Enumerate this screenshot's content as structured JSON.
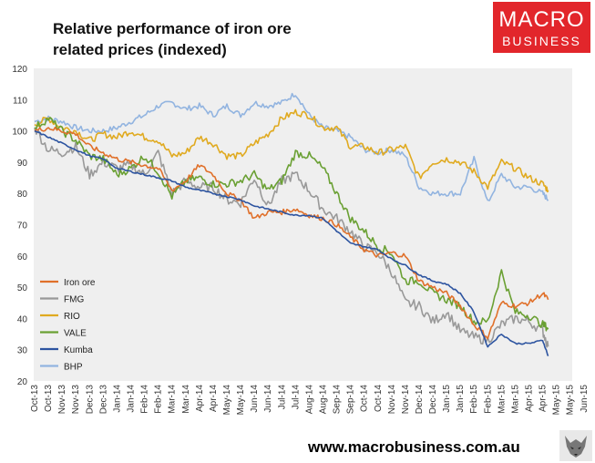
{
  "title_line1": "Relative performance of iron ore",
  "title_line2": "related prices (indexed)",
  "logo": {
    "line1": "MACRO",
    "line2": "BUSINESS"
  },
  "footer": "www.macrobusiness.com.au",
  "chart_data": {
    "type": "line",
    "title": "Relative performance of iron ore related prices (indexed)",
    "xlabel": "",
    "ylabel": "",
    "ylim": [
      20,
      120
    ],
    "yticks": [
      20,
      30,
      40,
      50,
      60,
      70,
      80,
      90,
      100,
      110,
      120
    ],
    "categories": [
      "Oct-13",
      "Oct-13",
      "Nov-13",
      "Nov-13",
      "Dec-13",
      "Dec-13",
      "Jan-14",
      "Jan-14",
      "Feb-14",
      "Feb-14",
      "Mar-14",
      "Mar-14",
      "Apr-14",
      "Apr-14",
      "May-14",
      "May-14",
      "Jun-14",
      "Jun-14",
      "Jul-14",
      "Jul-14",
      "Aug-14",
      "Aug-14",
      "Sep-14",
      "Sep-14",
      "Oct-14",
      "Oct-14",
      "Nov-14",
      "Nov-14",
      "Dec-14",
      "Dec-14",
      "Jan-15",
      "Jan-15",
      "Feb-15",
      "Feb-15",
      "Mar-15",
      "Mar-15",
      "Apr-15",
      "Apr-15",
      "May-15",
      "May-15",
      "Jun-15"
    ],
    "grid": false,
    "legend_position": "bottom-left",
    "series": [
      {
        "name": "Iron ore",
        "color": "#e0702a",
        "points": [
          [
            0,
            100
          ],
          [
            1,
            101
          ],
          [
            2,
            100
          ],
          [
            3,
            99
          ],
          [
            4,
            95
          ],
          [
            5,
            93
          ],
          [
            6,
            91
          ],
          [
            7,
            90
          ],
          [
            8,
            89
          ],
          [
            9,
            88
          ],
          [
            10,
            81
          ],
          [
            11,
            84
          ],
          [
            12,
            89
          ],
          [
            13,
            86
          ],
          [
            14,
            80
          ],
          [
            15,
            78
          ],
          [
            16,
            72
          ],
          [
            17,
            74
          ],
          [
            18,
            74
          ],
          [
            19,
            75
          ],
          [
            20,
            73
          ],
          [
            21,
            72
          ],
          [
            22,
            70
          ],
          [
            23,
            66
          ],
          [
            24,
            62
          ],
          [
            25,
            60
          ],
          [
            26,
            61
          ],
          [
            27,
            60
          ],
          [
            28,
            52
          ],
          [
            29,
            50
          ],
          [
            30,
            48
          ],
          [
            31,
            44
          ],
          [
            32,
            38
          ],
          [
            33,
            34
          ],
          [
            34,
            45
          ],
          [
            35,
            44
          ],
          [
            36,
            45
          ],
          [
            37,
            48
          ],
          [
            37.4,
            46
          ]
        ]
      },
      {
        "name": "FMG",
        "color": "#999999",
        "points": [
          [
            0,
            101
          ],
          [
            1,
            94
          ],
          [
            2,
            93
          ],
          [
            3,
            95
          ],
          [
            4,
            86
          ],
          [
            5,
            90
          ],
          [
            6,
            88
          ],
          [
            7,
            89
          ],
          [
            8,
            86
          ],
          [
            9,
            93
          ],
          [
            10,
            80
          ],
          [
            11,
            84
          ],
          [
            12,
            82
          ],
          [
            13,
            82
          ],
          [
            14,
            78
          ],
          [
            15,
            77
          ],
          [
            16,
            85
          ],
          [
            17,
            76
          ],
          [
            18,
            84
          ],
          [
            19,
            86
          ],
          [
            20,
            81
          ],
          [
            21,
            75
          ],
          [
            22,
            72
          ],
          [
            23,
            68
          ],
          [
            24,
            63
          ],
          [
            25,
            61
          ],
          [
            26,
            55
          ],
          [
            27,
            45
          ],
          [
            28,
            44
          ],
          [
            29,
            39
          ],
          [
            30,
            42
          ],
          [
            31,
            36
          ],
          [
            32,
            34
          ],
          [
            33,
            33
          ],
          [
            34,
            38
          ],
          [
            35,
            40
          ],
          [
            36,
            39
          ],
          [
            37,
            36
          ],
          [
            37.4,
            31
          ]
        ]
      },
      {
        "name": "RIO",
        "color": "#e0aa20",
        "points": [
          [
            0,
            102
          ],
          [
            1,
            104
          ],
          [
            2,
            101
          ],
          [
            3,
            100
          ],
          [
            4,
            97
          ],
          [
            5,
            99
          ],
          [
            6,
            98
          ],
          [
            7,
            100
          ],
          [
            8,
            98
          ],
          [
            9,
            97
          ],
          [
            10,
            92
          ],
          [
            11,
            93
          ],
          [
            12,
            98
          ],
          [
            13,
            96
          ],
          [
            14,
            92
          ],
          [
            15,
            92
          ],
          [
            16,
            96
          ],
          [
            17,
            99
          ],
          [
            18,
            104
          ],
          [
            19,
            106
          ],
          [
            20,
            105
          ],
          [
            21,
            101
          ],
          [
            22,
            101
          ],
          [
            23,
            95
          ],
          [
            24,
            95
          ],
          [
            25,
            93
          ],
          [
            26,
            94
          ],
          [
            27,
            95
          ],
          [
            28,
            85
          ],
          [
            29,
            90
          ],
          [
            30,
            91
          ],
          [
            31,
            90
          ],
          [
            32,
            87
          ],
          [
            33,
            82
          ],
          [
            34,
            90
          ],
          [
            35,
            88
          ],
          [
            36,
            85
          ],
          [
            37,
            83
          ],
          [
            37.4,
            81
          ]
        ]
      },
      {
        "name": "VALE",
        "color": "#6aa033",
        "points": [
          [
            0,
            101
          ],
          [
            1,
            104
          ],
          [
            2,
            100
          ],
          [
            3,
            97
          ],
          [
            4,
            92
          ],
          [
            5,
            91
          ],
          [
            6,
            86
          ],
          [
            7,
            88
          ],
          [
            8,
            92
          ],
          [
            9,
            87
          ],
          [
            10,
            79
          ],
          [
            11,
            84
          ],
          [
            12,
            85
          ],
          [
            13,
            83
          ],
          [
            14,
            83
          ],
          [
            15,
            84
          ],
          [
            16,
            86
          ],
          [
            17,
            81
          ],
          [
            18,
            84
          ],
          [
            19,
            93
          ],
          [
            20,
            92
          ],
          [
            21,
            88
          ],
          [
            22,
            80
          ],
          [
            23,
            72
          ],
          [
            24,
            68
          ],
          [
            25,
            63
          ],
          [
            26,
            61
          ],
          [
            27,
            52
          ],
          [
            28,
            52
          ],
          [
            29,
            48
          ],
          [
            30,
            46
          ],
          [
            31,
            44
          ],
          [
            32,
            39
          ],
          [
            33,
            39
          ],
          [
            34,
            55
          ],
          [
            35,
            42
          ],
          [
            36,
            41
          ],
          [
            37,
            38
          ],
          [
            37.4,
            37
          ]
        ]
      },
      {
        "name": "Kumba",
        "color": "#2d54a0",
        "points": [
          [
            0,
            100
          ],
          [
            1,
            98
          ],
          [
            2,
            96
          ],
          [
            3,
            94
          ],
          [
            4,
            92
          ],
          [
            5,
            91
          ],
          [
            6,
            88
          ],
          [
            7,
            87
          ],
          [
            8,
            86
          ],
          [
            9,
            85
          ],
          [
            10,
            84
          ],
          [
            11,
            82
          ],
          [
            12,
            81
          ],
          [
            13,
            80
          ],
          [
            14,
            79
          ],
          [
            15,
            78
          ],
          [
            16,
            76
          ],
          [
            17,
            75
          ],
          [
            18,
            74
          ],
          [
            19,
            73
          ],
          [
            20,
            73
          ],
          [
            21,
            72
          ],
          [
            22,
            68
          ],
          [
            23,
            64
          ],
          [
            24,
            63
          ],
          [
            25,
            62
          ],
          [
            26,
            59
          ],
          [
            27,
            57
          ],
          [
            28,
            54
          ],
          [
            29,
            52
          ],
          [
            30,
            51
          ],
          [
            31,
            48
          ],
          [
            32,
            42
          ],
          [
            33,
            31
          ],
          [
            34,
            35
          ],
          [
            35,
            32
          ],
          [
            36,
            32
          ],
          [
            37,
            33
          ],
          [
            37.4,
            28
          ]
        ]
      },
      {
        "name": "BHP",
        "color": "#92b4e0",
        "points": [
          [
            0,
            103
          ],
          [
            1,
            104
          ],
          [
            2,
            103
          ],
          [
            3,
            101
          ],
          [
            4,
            100
          ],
          [
            5,
            100
          ],
          [
            6,
            101
          ],
          [
            7,
            103
          ],
          [
            8,
            105
          ],
          [
            9,
            108
          ],
          [
            10,
            109
          ],
          [
            11,
            107
          ],
          [
            12,
            108
          ],
          [
            13,
            105
          ],
          [
            14,
            108
          ],
          [
            15,
            105
          ],
          [
            16,
            109
          ],
          [
            17,
            108
          ],
          [
            18,
            109
          ],
          [
            19,
            112
          ],
          [
            20,
            105
          ],
          [
            21,
            101
          ],
          [
            22,
            100
          ],
          [
            23,
            98
          ],
          [
            24,
            94
          ],
          [
            25,
            93
          ],
          [
            26,
            94
          ],
          [
            27,
            92
          ],
          [
            28,
            82
          ],
          [
            29,
            80
          ],
          [
            30,
            80
          ],
          [
            31,
            80
          ],
          [
            32,
            91
          ],
          [
            33,
            77
          ],
          [
            34,
            86
          ],
          [
            35,
            82
          ],
          [
            36,
            82
          ],
          [
            37,
            80
          ],
          [
            37.4,
            78
          ]
        ]
      }
    ]
  }
}
